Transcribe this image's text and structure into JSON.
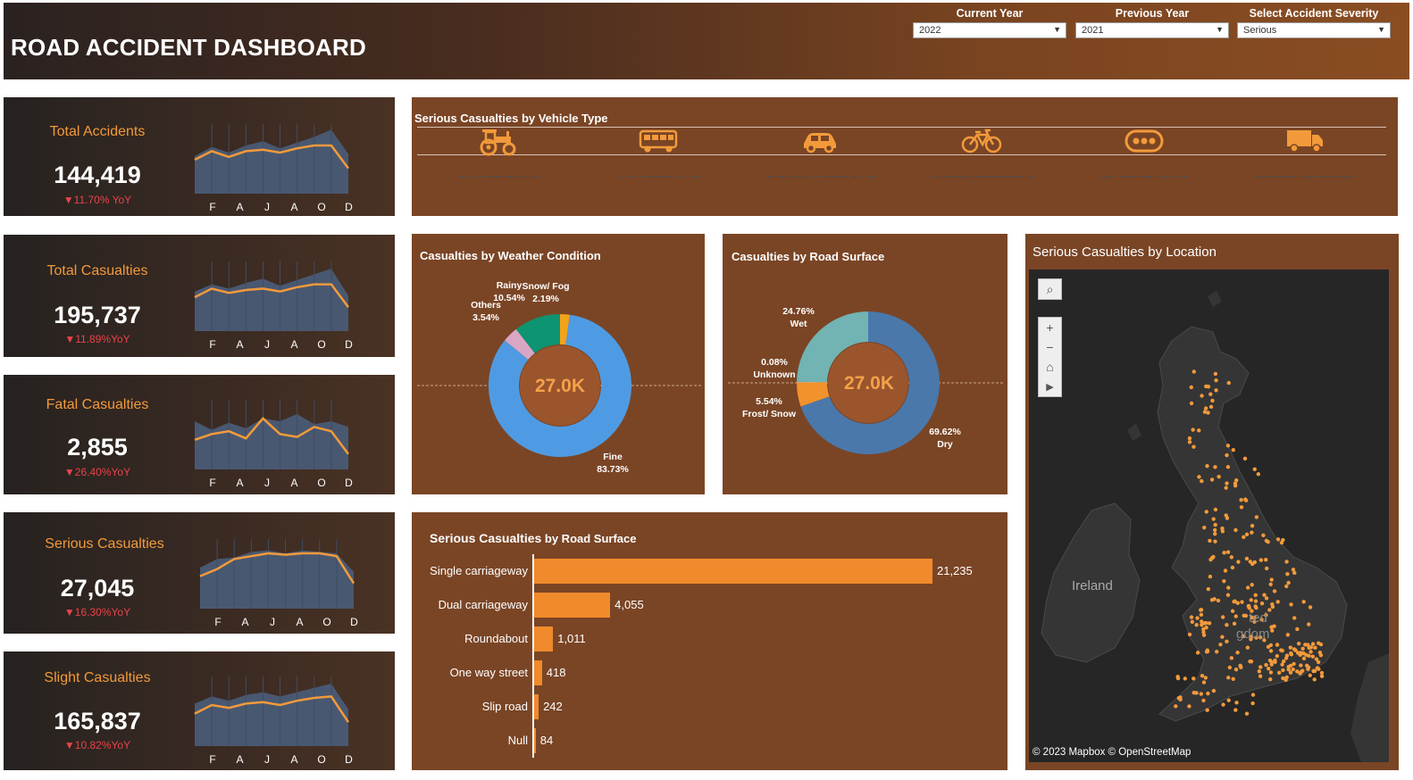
{
  "header": {
    "title": "ROAD ACCIDENT DASHBOARD",
    "filters": [
      {
        "label": "Current Year",
        "value": "2022"
      },
      {
        "label": "Previous Year",
        "value": "2021"
      },
      {
        "label": "Select Accident Severity",
        "value": "Serious"
      }
    ]
  },
  "kpis": [
    {
      "name": "Total Accidents",
      "value": "144,419",
      "yoy": "▼11.70% YoY"
    },
    {
      "name": "Total Casualties",
      "value": "195,737",
      "yoy": "▼11.89%YoY"
    },
    {
      "name": "Fatal Casualties",
      "value": "2,855",
      "yoy": "▼26.40%YoY"
    },
    {
      "name": "Serious Casualties",
      "value": "27,045",
      "yoy": "▼16.30%YoY"
    },
    {
      "name": "Slight Casualties",
      "value": "165,837",
      "yoy": "▼10.82%YoY"
    }
  ],
  "month_ticks": [
    "F",
    "A",
    "J",
    "A",
    "O",
    "D"
  ],
  "vehicle_panel": {
    "title": "Serious Casualties by Vehicle Type",
    "icons": [
      "tractor-icon",
      "bus-icon",
      "car-icon",
      "bicycle-icon",
      "other-vehicle-icon",
      "truck-icon"
    ]
  },
  "weather_panel": {
    "title": "Casualties by Weather Condition",
    "center": "27.0K",
    "slices": [
      {
        "label": "Fine",
        "pct": "83.73%",
        "value": 83.73,
        "color": "#4f9be3"
      },
      {
        "label": "Others",
        "pct": "3.54%",
        "value": 3.54,
        "color": "#d9a6c4"
      },
      {
        "label": "Rainy",
        "pct": "10.54%",
        "value": 10.54,
        "color": "#0e9470"
      },
      {
        "label": "Snow/ Fog",
        "pct": "2.19%",
        "value": 2.19,
        "color": "#f2a319"
      }
    ]
  },
  "surface_panel": {
    "title": "Casualties by Road Surface",
    "center": "27.0K",
    "slices": [
      {
        "label": "Dry",
        "pct": "69.62%",
        "value": 69.62,
        "color": "#4a78ab"
      },
      {
        "label": "Frost/ Snow",
        "pct": "5.54%",
        "value": 5.54,
        "color": "#f2922c"
      },
      {
        "label": "Unknown",
        "pct": "0.08%",
        "value": 0.08,
        "color": "#e0e0e0"
      },
      {
        "label": "Wet",
        "pct": "24.76%",
        "value": 24.76,
        "color": "#72b3b3"
      }
    ]
  },
  "road_type_panel": {
    "title_main": "Serious Casualties",
    "title_sub": " by Road Surface",
    "bars": [
      {
        "label": "Single carriageway",
        "value": 21235,
        "display": "21,235"
      },
      {
        "label": "Dual carriageway",
        "value": 4055,
        "display": "4,055"
      },
      {
        "label": "Roundabout",
        "value": 1011,
        "display": "1,011"
      },
      {
        "label": "One way street",
        "value": 418,
        "display": "418"
      },
      {
        "label": "Slip road",
        "value": 242,
        "display": "242"
      },
      {
        "label": "Null",
        "value": 84,
        "display": "84"
      }
    ]
  },
  "map_panel": {
    "title": "Serious Casualties by Location",
    "labels": [
      "Ireland",
      "ted",
      "gdom"
    ],
    "attribution": "© 2023 Mapbox  © OpenStreetMap"
  },
  "colors": {
    "accent": "#f29a3b",
    "negative": "#e8434a",
    "panel": "#7a4525",
    "bar": "#f08a2c"
  }
}
